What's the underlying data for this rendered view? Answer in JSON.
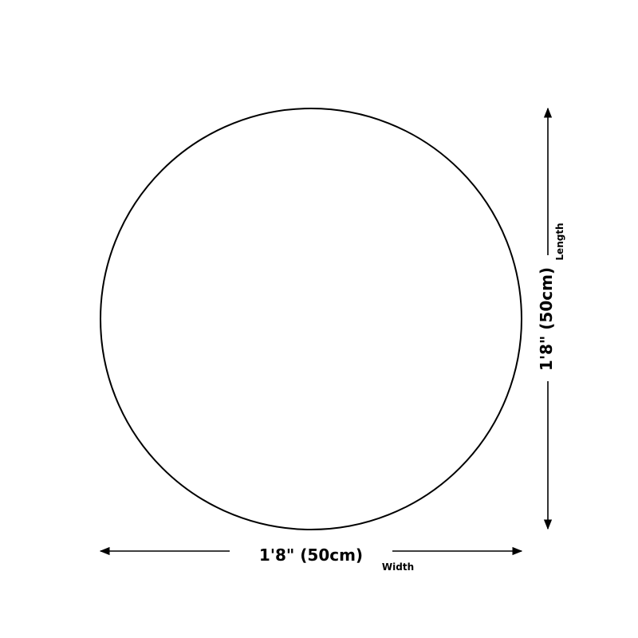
{
  "diagram": {
    "shape": "circle",
    "width_dimension": "1'8\" (50cm)",
    "width_label": "Width",
    "length_dimension": "1'8\" (50cm)",
    "length_label": "Length",
    "stroke_color": "#000000",
    "background_color": "#ffffff"
  }
}
